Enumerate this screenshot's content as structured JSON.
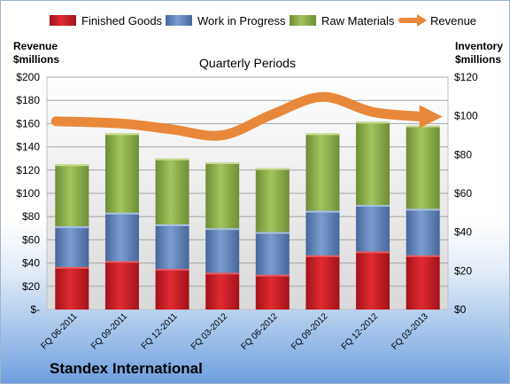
{
  "chart_data": {
    "type": "bar",
    "stacked": true,
    "title": "Quarterly Periods",
    "company": "Standex International",
    "categories": [
      "FQ 06-2011",
      "FQ 09-2011",
      "FQ 12-2011",
      "FQ 03-2012",
      "FQ 06-2012",
      "FQ 09-2012",
      "FQ 12-2012",
      "FQ 03-2013"
    ],
    "series": [
      {
        "name": "Finished Goods",
        "axis": "right",
        "color": "#c0181f",
        "values": [
          22,
          25,
          21,
          19,
          18,
          28,
          30,
          28
        ]
      },
      {
        "name": "Work in Progress",
        "axis": "right",
        "color": "#5b80b8",
        "values": [
          21,
          25,
          23,
          23,
          22,
          23,
          24,
          24
        ]
      },
      {
        "name": "Raw Materials",
        "axis": "right",
        "color": "#8cac4a",
        "values": [
          32,
          41,
          34,
          34,
          33,
          40,
          43,
          43
        ]
      },
      {
        "name": "Revenue",
        "axis": "left",
        "type": "line",
        "color": "#e8883a",
        "values": [
          162,
          160,
          155,
          150,
          168,
          183,
          170,
          166
        ]
      }
    ],
    "left_axis": {
      "label_line1": "Revenue",
      "label_line2": "$millions",
      "ylim": [
        0,
        200
      ],
      "ticks": [
        "$-",
        "$20",
        "$40",
        "$60",
        "$80",
        "$100",
        "$120",
        "$140",
        "$160",
        "$180",
        "$200"
      ]
    },
    "right_axis": {
      "label_line1": "Inventory",
      "label_line2": "$millions",
      "ylim": [
        0,
        120
      ],
      "ticks": [
        "$0",
        "$20",
        "$40",
        "$60",
        "$80",
        "$100",
        "$120"
      ]
    },
    "grid": true,
    "legend_position": "top"
  }
}
